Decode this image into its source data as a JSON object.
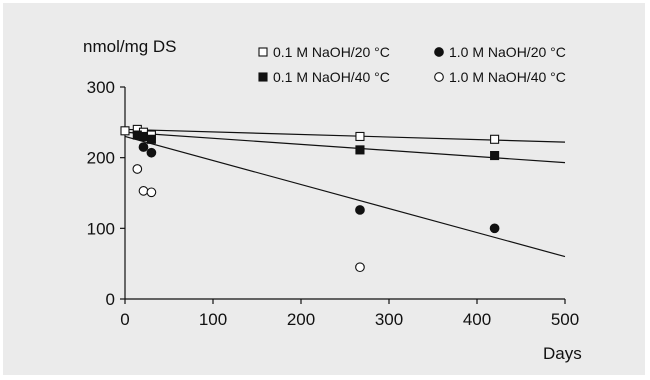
{
  "chart_data": {
    "type": "scatter",
    "ylabel": "nmol/mg DS",
    "xlabel": "Days",
    "xlim": [
      0,
      500
    ],
    "ylim": [
      0,
      300
    ],
    "x_ticks": [
      0,
      100,
      200,
      300,
      400,
      500
    ],
    "y_ticks": [
      0,
      100,
      200,
      300
    ],
    "grid": false,
    "legend_placement": "top-right",
    "series": [
      {
        "name": "0.1 M NaOH/20 °C",
        "marker": "open-square",
        "color": "#111111",
        "x": [
          0,
          14,
          21,
          30,
          267,
          420
        ],
        "y": [
          238,
          240,
          236,
          232,
          230,
          226
        ],
        "trend": {
          "x": [
            0,
            500
          ],
          "y": [
            240,
            222
          ]
        }
      },
      {
        "name": "1.0 M NaOH/20 °C",
        "marker": "filled-circle",
        "color": "#111111",
        "x": [
          21,
          30,
          267,
          420
        ],
        "y": [
          215,
          207,
          126,
          100
        ],
        "trend": {
          "x": [
            0,
            500
          ],
          "y": [
            230,
            60
          ]
        }
      },
      {
        "name": "0.1 M NaOH/40 °C",
        "marker": "filled-square",
        "color": "#111111",
        "x": [
          14,
          21,
          30,
          267,
          420
        ],
        "y": [
          232,
          230,
          226,
          211,
          203
        ],
        "trend": {
          "x": [
            0,
            500
          ],
          "y": [
            236,
            193
          ]
        }
      },
      {
        "name": "1.0 M NaOH/40 °C",
        "marker": "open-circle",
        "color": "#111111",
        "x": [
          14,
          21,
          30,
          267
        ],
        "y": [
          184,
          153,
          151,
          45
        ]
      }
    ]
  }
}
